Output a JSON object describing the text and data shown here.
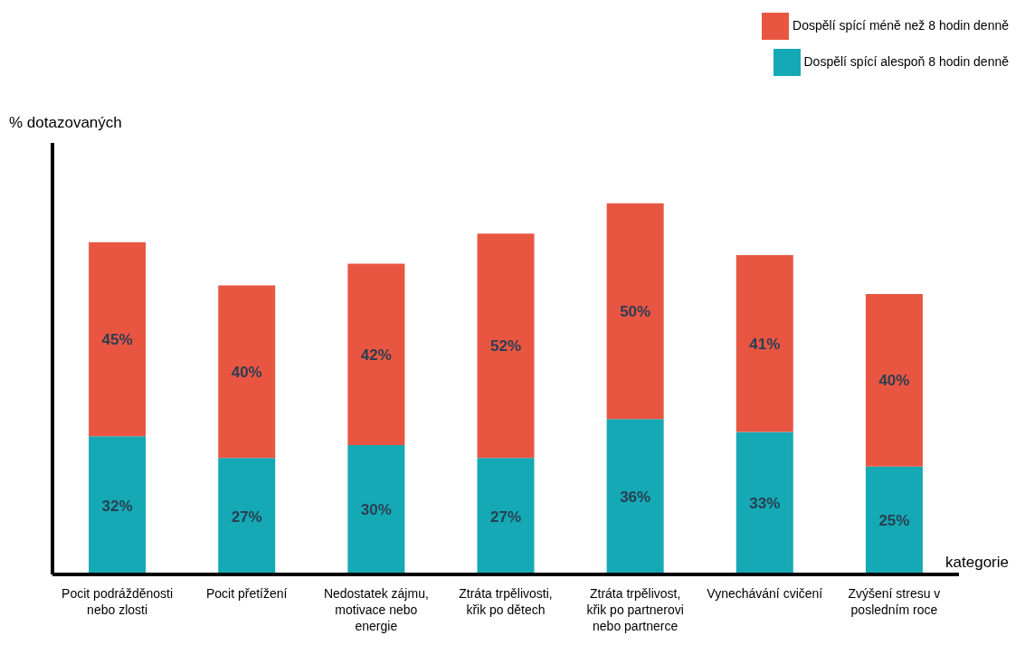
{
  "chart_data": {
    "type": "bar",
    "stacked": true,
    "relative": false,
    "xlabel": "kategorie",
    "ylabel": "% dotazovaných",
    "categories": [
      "Pocit podrážděnosti nebo zlosti",
      "Pocit přetížení",
      "Nedostatek zájmu, motivace nebo energie",
      "Ztráta trpělivosti, křik po dětech",
      "Ztráta trpělivost, křik po partnerovi nebo partnerce",
      "Vynechávání cvičení",
      "Zvýšení stresu v posledním roce"
    ],
    "series": [
      {
        "name": "Dospělí spící alespoň 8 hodin denně",
        "color": "#14a9b5",
        "values": [
          32,
          27,
          30,
          27,
          36,
          33,
          25
        ],
        "value_labels": [
          "32%",
          "27%",
          "30%",
          "27%",
          "36%",
          "33%",
          "25%"
        ]
      },
      {
        "name": "Dospělí spící méně než 8 hodin denně",
        "color": "#e85642",
        "values": [
          45,
          40,
          42,
          52,
          50,
          41,
          40
        ],
        "value_labels": [
          "45%",
          "40%",
          "42%",
          "52%",
          "50%",
          "41%",
          "40%"
        ]
      }
    ],
    "legend": "top right",
    "grid": false
  }
}
